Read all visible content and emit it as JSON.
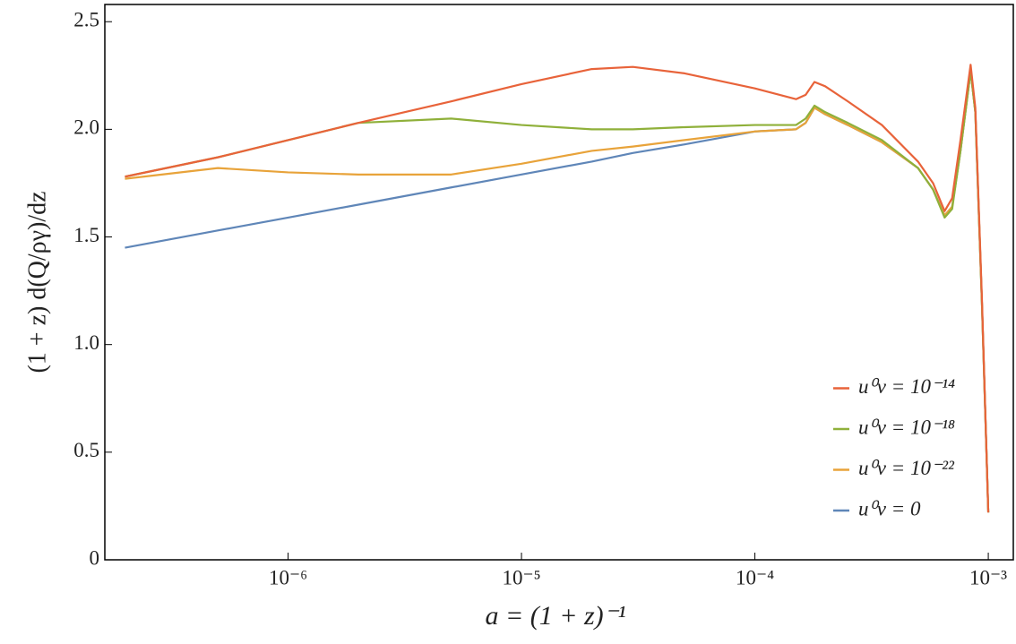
{
  "chart_data": {
    "type": "line",
    "xlabel": "a = (1 + z)⁻¹",
    "ylabel": "(1 + z) d(Q/ργ)/dz",
    "xscale": "log",
    "grid": false,
    "legend": "lower right",
    "x": [
      2e-07,
      5e-07,
      1e-06,
      2e-06,
      5e-06,
      1e-05,
      2e-05,
      3e-05,
      5e-05,
      0.0001,
      0.00015,
      0.000165,
      0.00018,
      0.0002,
      0.00025,
      0.00035,
      0.0005,
      0.00058,
      0.00065,
      0.0007,
      0.00076,
      0.00084,
      0.00088,
      0.00094,
      0.001
    ],
    "series": [
      {
        "name": "u⁰ν = 10⁻¹⁴",
        "color": "#e8633a",
        "values": [
          1.78,
          1.87,
          1.95,
          2.03,
          2.13,
          2.21,
          2.28,
          2.29,
          2.26,
          2.19,
          2.14,
          2.16,
          2.22,
          2.2,
          2.13,
          2.02,
          1.85,
          1.75,
          1.62,
          1.68,
          1.95,
          2.3,
          2.1,
          1.2,
          0.22
        ]
      },
      {
        "name": "u⁰ν = 10⁻¹⁸",
        "color": "#8fb03a",
        "values": [
          1.78,
          1.87,
          1.95,
          2.03,
          2.05,
          2.02,
          2.0,
          2.0,
          2.01,
          2.02,
          2.02,
          2.05,
          2.11,
          2.08,
          2.03,
          1.95,
          1.82,
          1.72,
          1.59,
          1.63,
          1.9,
          2.27,
          2.08,
          1.18,
          0.22
        ]
      },
      {
        "name": "u⁰ν = 10⁻²²",
        "color": "#e8a33a",
        "values": [
          1.77,
          1.82,
          1.8,
          1.79,
          1.79,
          1.84,
          1.9,
          1.92,
          1.95,
          1.99,
          2.0,
          2.03,
          2.1,
          2.07,
          2.02,
          1.94,
          1.82,
          1.72,
          1.6,
          1.64,
          1.9,
          2.27,
          2.08,
          1.18,
          0.22
        ]
      },
      {
        "name": "u⁰ν = 0",
        "color": "#5f86b8",
        "values": [
          1.45,
          1.53,
          1.59,
          1.65,
          1.73,
          1.79,
          1.85,
          1.89,
          1.93,
          1.99,
          2.0,
          2.03,
          2.1,
          2.07,
          2.02,
          1.94,
          1.82,
          1.72,
          1.6,
          1.64,
          1.9,
          2.27,
          2.08,
          1.18,
          0.22
        ]
      }
    ],
    "xlim": [
      1.64e-07,
      0.00128
    ],
    "xticks": [
      {
        "value": 1e-06,
        "label": "10⁻⁶"
      },
      {
        "value": 1e-05,
        "label": "10⁻⁵"
      },
      {
        "value": 0.0001,
        "label": "10⁻⁴"
      },
      {
        "value": 0.001,
        "label": "10⁻³"
      }
    ],
    "ylim": [
      0,
      2.58
    ],
    "yticks": [
      0,
      0.5,
      {
        "value": 1,
        "label": "1.0"
      },
      1.5,
      {
        "value": 2,
        "label": "2.0"
      },
      2.5
    ]
  }
}
